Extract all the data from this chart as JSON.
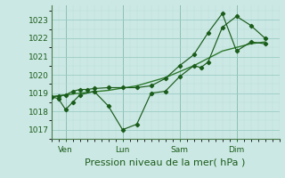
{
  "background_color": "#cce8e4",
  "grid_color_major": "#9cccc6",
  "grid_color_minor": "#b8ddd9",
  "line_color_dark": "#1a5c1a",
  "line_color_mid": "#2d7a2d",
  "title": "Pression niveau de la mer( hPa )",
  "title_fontsize": 8,
  "ytick_labels": [
    "1017",
    "1018",
    "1019",
    "1020",
    "1021",
    "1022",
    "1023"
  ],
  "ytick_values": [
    1017,
    1018,
    1019,
    1020,
    1021,
    1022,
    1023
  ],
  "ylim": [
    1016.5,
    1023.8
  ],
  "day_labels": [
    "Ven",
    "Lun",
    "Sam",
    "Dim"
  ],
  "xlim_days": [
    0,
    8.0
  ],
  "series1_x": [
    0.0,
    0.25,
    0.5,
    0.75,
    1.0,
    1.5,
    2.0,
    2.5,
    3.0,
    3.5,
    4.0,
    4.5,
    5.0,
    5.25,
    5.5,
    6.0,
    6.5,
    7.0,
    7.5
  ],
  "series1_y": [
    1018.8,
    1018.7,
    1018.1,
    1018.5,
    1018.9,
    1019.1,
    1018.3,
    1017.0,
    1017.3,
    1019.0,
    1019.1,
    1019.9,
    1020.5,
    1020.4,
    1020.7,
    1022.6,
    1023.2,
    1022.7,
    1022.0
  ],
  "series2_x": [
    0.0,
    0.25,
    0.5,
    0.75,
    1.0,
    1.25,
    1.5,
    2.0,
    2.5,
    3.0,
    3.5,
    4.0,
    4.5,
    5.0,
    5.5,
    6.0,
    6.5,
    7.0,
    7.5
  ],
  "series2_y": [
    1018.8,
    1018.85,
    1018.9,
    1019.1,
    1019.2,
    1019.2,
    1019.25,
    1019.3,
    1019.3,
    1019.3,
    1019.4,
    1019.8,
    1020.5,
    1021.1,
    1022.3,
    1023.35,
    1021.3,
    1021.8,
    1021.7
  ],
  "series3_x": [
    0.0,
    1.0,
    2.0,
    3.0,
    4.0,
    5.0,
    6.0,
    7.0,
    7.5
  ],
  "series3_y": [
    1018.8,
    1019.0,
    1019.15,
    1019.4,
    1019.85,
    1020.5,
    1021.3,
    1021.7,
    1021.8
  ],
  "marker_size": 2.2,
  "lw_main": 0.85,
  "lw_smooth": 1.0
}
